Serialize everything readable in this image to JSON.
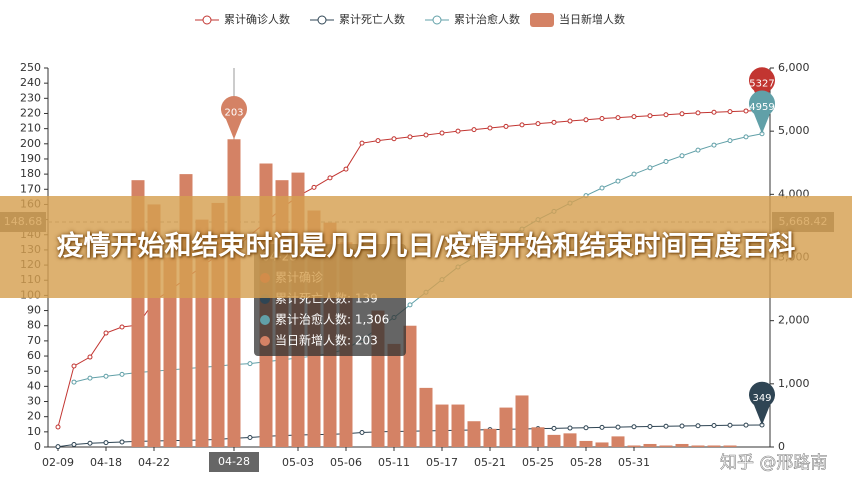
{
  "chart_data": {
    "type": "bar-line",
    "categories": [
      "02-09",
      null,
      null,
      "04-18",
      null,
      null,
      "04-22",
      null,
      null,
      null,
      null,
      "04-28",
      null,
      null,
      null,
      "05-03",
      null,
      null,
      "05-06",
      null,
      null,
      "05-11",
      null,
      null,
      "05-17",
      null,
      null,
      "05-21",
      null,
      null,
      "05-25",
      null,
      null,
      "05-28",
      null,
      null,
      "05-31",
      null,
      null,
      null,
      null,
      null,
      null,
      null,
      null
    ],
    "series": [
      {
        "name": "累计确诊人数",
        "type": "line",
        "axis": "y2",
        "color": "#c23531",
        "mark_point": "max",
        "values": [
          316,
          1282,
          1424,
          1804,
          1900,
          1930,
          2310,
          2480,
          2670,
          2860,
          3040,
          3117,
          3350,
          3560,
          3780,
          3970,
          4110,
          4260,
          4400,
          4810,
          4850,
          4880,
          4910,
          4940,
          4970,
          5000,
          5025,
          5050,
          5075,
          5100,
          5120,
          5140,
          5160,
          5180,
          5200,
          5215,
          5230,
          5245,
          5260,
          5275,
          5290,
          5300,
          5310,
          5320,
          5327
        ]
      },
      {
        "name": "累计死亡人数",
        "type": "line",
        "axis": "y2",
        "color": "#2f4554",
        "mark_point": "max",
        "values": [
          5,
          40,
          60,
          70,
          80,
          90,
          95,
          100,
          105,
          110,
          120,
          139,
          150,
          170,
          180,
          190,
          195,
          200,
          210,
          230,
          240,
          245,
          250,
          255,
          260,
          265,
          270,
          275,
          280,
          285,
          290,
          295,
          300,
          305,
          310,
          315,
          320,
          324,
          328,
          332,
          336,
          340,
          344,
          347,
          349
        ]
      },
      {
        "name": "累计治愈人数",
        "type": "line",
        "axis": "y2",
        "color": "#61a0a8",
        "mark_point": "max",
        "values": [
          null,
          1028,
          1090,
          1120,
          1150,
          1180,
          1200,
          1220,
          1240,
          1260,
          1280,
          1306,
          1320,
          1350,
          1380,
          1410,
          1440,
          1480,
          1550,
          1700,
          1880,
          2050,
          2250,
          2450,
          2650,
          2850,
          3000,
          3150,
          3300,
          3450,
          3600,
          3730,
          3860,
          3980,
          4100,
          4210,
          4320,
          4420,
          4520,
          4610,
          4700,
          4780,
          4850,
          4910,
          4959
        ]
      },
      {
        "name": "当日新增人数",
        "type": "bar",
        "color": "#d48265",
        "mark_point": "max",
        "values": [
          0,
          0,
          0,
          0,
          0,
          176,
          160,
          125,
          180,
          150,
          161,
          203,
          0,
          187,
          176,
          181,
          156,
          148,
          135,
          0,
          90,
          68,
          80,
          39,
          28,
          28,
          17,
          12,
          26,
          34,
          13,
          8,
          9,
          4,
          3,
          7,
          1,
          2,
          1,
          2,
          1,
          1,
          1,
          0,
          0
        ]
      }
    ],
    "ylim": [
      0,
      250
    ],
    "yticks": [
      0,
      10,
      20,
      30,
      40,
      50,
      60,
      70,
      80,
      90,
      100,
      110,
      120,
      130,
      140,
      150,
      160,
      170,
      180,
      190,
      200,
      210,
      220,
      230,
      240,
      250
    ],
    "y2lim": [
      0,
      6000
    ],
    "y2ticks": [
      0,
      {
        "value": 1000,
        "label": "1,000"
      },
      {
        "value": 2000,
        "label": "2,000"
      },
      {
        "value": 3000,
        "label": "3,000"
      },
      {
        "value": 4000,
        "label": "4,000"
      },
      {
        "value": 5000,
        "label": "5,000"
      },
      {
        "value": 6000,
        "label": "6,000"
      }
    ],
    "legend": "top",
    "axis_pointer": {
      "y_label": "148.68",
      "y2_label": "5,668.42"
    },
    "tooltip": {
      "title": "04-28",
      "rows": [
        "累计确诊",
        "累计死亡人数: 139",
        "累计治愈人数: 1,306",
        "当日新增人数: 203"
      ]
    }
  },
  "banner": "疫情开始和结束时间是几月几日/疫情开始和结束时间百度百科",
  "watermark": "知乎 @邢路南"
}
